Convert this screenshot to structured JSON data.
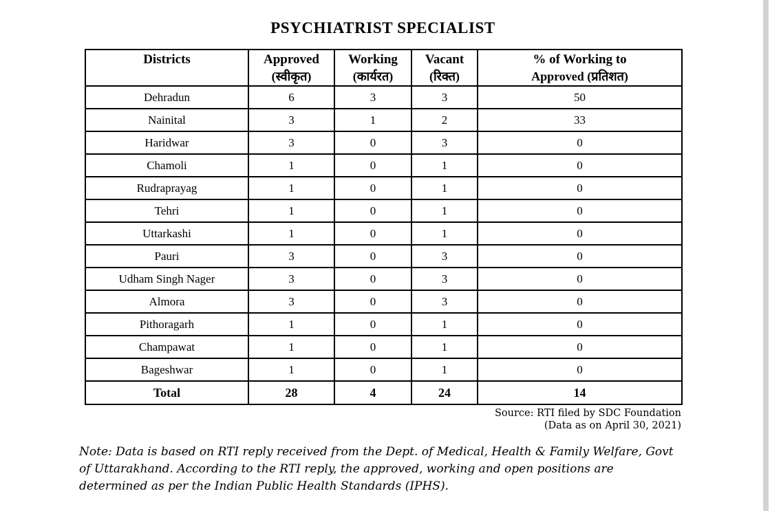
{
  "title": "PSYCHIATRIST SPECIALIST",
  "table": {
    "columns": [
      {
        "line1": "Districts",
        "line2": ""
      },
      {
        "line1": "Approved",
        "line2": "(स्वीकृत)"
      },
      {
        "line1": "Working",
        "line2": "(कार्यरत)"
      },
      {
        "line1": "Vacant",
        "line2": "(रिक्त)"
      },
      {
        "line1": "% of Working to",
        "line2": "Approved (प्रतिशत)"
      }
    ],
    "rows": [
      [
        "Dehradun",
        "6",
        "3",
        "3",
        "50"
      ],
      [
        "Nainital",
        "3",
        "1",
        "2",
        "33"
      ],
      [
        "Haridwar",
        "3",
        "0",
        "3",
        "0"
      ],
      [
        "Chamoli",
        "1",
        "0",
        "1",
        "0"
      ],
      [
        "Rudraprayag",
        "1",
        "0",
        "1",
        "0"
      ],
      [
        "Tehri",
        "1",
        "0",
        "1",
        "0"
      ],
      [
        "Uttarkashi",
        "1",
        "0",
        "1",
        "0"
      ],
      [
        "Pauri",
        "3",
        "0",
        "3",
        "0"
      ],
      [
        "Udham Singh Nager",
        "3",
        "0",
        "3",
        "0"
      ],
      [
        "Almora",
        "3",
        "0",
        "3",
        "0"
      ],
      [
        "Pithoragarh",
        "1",
        "0",
        "1",
        "0"
      ],
      [
        "Champawat",
        "1",
        "0",
        "1",
        "0"
      ],
      [
        "Bageshwar",
        "1",
        "0",
        "1",
        "0"
      ]
    ],
    "total": [
      "Total",
      "28",
      "4",
      "24",
      "14"
    ]
  },
  "source": {
    "line1": "Source: RTI filed by SDC Foundation",
    "line2": "(Data as on April 30, 2021)"
  },
  "note": "Note: Data is based on RTI reply received from the Dept. of Medical, Health & Family Welfare, Govt of Uttarakhand. According to the RTI reply, the approved, working and open positions are determined as per the Indian Public Health Standards (IPHS).",
  "colors": {
    "text": "#000000",
    "border": "#000000",
    "background": "#ffffff",
    "scrollbar": "#d3d3d3"
  }
}
